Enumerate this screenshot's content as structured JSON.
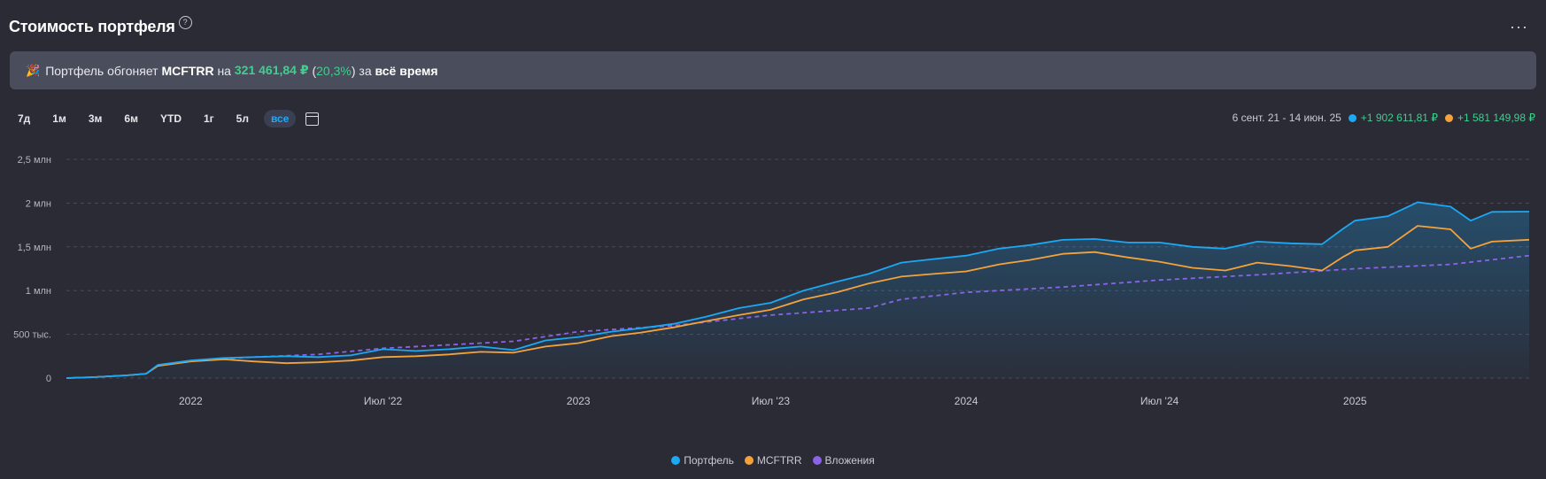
{
  "header": {
    "title": "Стоимость портфеля",
    "help_icon": "?",
    "more_icon": "···"
  },
  "banner": {
    "party_icon": "🎉",
    "text_prefix": "Портфель обгоняет",
    "benchmark": "MCFTRR",
    "text_on": "на",
    "amount": "321 461,84 ₽",
    "paren_open": "(",
    "percent": "20,3%",
    "paren_close": ")",
    "text_for": "за",
    "period": "всё время"
  },
  "ranges": [
    {
      "label": "7д",
      "active": false
    },
    {
      "label": "1м",
      "active": false
    },
    {
      "label": "3м",
      "active": false
    },
    {
      "label": "6м",
      "active": false
    },
    {
      "label": "YTD",
      "active": false
    },
    {
      "label": "1г",
      "active": false
    },
    {
      "label": "5л",
      "active": false
    },
    {
      "label": "все",
      "active": true
    }
  ],
  "summary": {
    "period": "6 сент. 21 - 14 июн. 25",
    "portfolio_gain": "+1 902 611,81 ₽",
    "benchmark_gain": "+1 581 149,98 ₽"
  },
  "colors": {
    "portfolio": "#1ba8f4",
    "benchmark": "#f4a23c",
    "investments": "#8c63e6",
    "grid": "#4a4a58"
  },
  "chart_data": {
    "type": "line",
    "x_range": [
      "2021-09-06",
      "2025-06-14"
    ],
    "ylim": [
      0,
      2500000
    ],
    "y_ticks": [
      {
        "value": 0,
        "label": "0"
      },
      {
        "value": 500000,
        "label": "500 тыс."
      },
      {
        "value": 1000000,
        "label": "1 млн"
      },
      {
        "value": 1500000,
        "label": "1,5 млн"
      },
      {
        "value": 2000000,
        "label": "2 млн"
      },
      {
        "value": 2500000,
        "label": "2,5 млн"
      }
    ],
    "x_ticks": [
      {
        "date": "2022-01-01",
        "label": "2022"
      },
      {
        "date": "2022-07-01",
        "label": "Июл '22"
      },
      {
        "date": "2023-01-01",
        "label": "2023"
      },
      {
        "date": "2023-07-01",
        "label": "Июл '23"
      },
      {
        "date": "2024-01-01",
        "label": "2024"
      },
      {
        "date": "2024-07-01",
        "label": "Июл '24"
      },
      {
        "date": "2025-01-01",
        "label": "2025"
      }
    ],
    "grid": true,
    "legend_position": "bottom",
    "series": [
      {
        "name": "Портфель",
        "key": "portfolio",
        "style": "solid-area",
        "points": [
          [
            "2021-09-06",
            0
          ],
          [
            "2021-10-01",
            10000
          ],
          [
            "2021-11-01",
            30000
          ],
          [
            "2021-11-20",
            50000
          ],
          [
            "2021-12-01",
            150000
          ],
          [
            "2022-01-01",
            200000
          ],
          [
            "2022-02-01",
            230000
          ],
          [
            "2022-03-01",
            240000
          ],
          [
            "2022-04-01",
            250000
          ],
          [
            "2022-05-01",
            240000
          ],
          [
            "2022-06-01",
            260000
          ],
          [
            "2022-07-01",
            330000
          ],
          [
            "2022-08-01",
            310000
          ],
          [
            "2022-09-01",
            330000
          ],
          [
            "2022-10-01",
            360000
          ],
          [
            "2022-11-01",
            320000
          ],
          [
            "2022-12-01",
            430000
          ],
          [
            "2023-01-01",
            470000
          ],
          [
            "2023-02-01",
            530000
          ],
          [
            "2023-03-01",
            570000
          ],
          [
            "2023-04-01",
            620000
          ],
          [
            "2023-05-01",
            700000
          ],
          [
            "2023-06-01",
            800000
          ],
          [
            "2023-07-01",
            860000
          ],
          [
            "2023-08-01",
            1000000
          ],
          [
            "2023-09-01",
            1100000
          ],
          [
            "2023-10-01",
            1190000
          ],
          [
            "2023-11-01",
            1320000
          ],
          [
            "2023-12-01",
            1360000
          ],
          [
            "2024-01-01",
            1400000
          ],
          [
            "2024-02-01",
            1480000
          ],
          [
            "2024-03-01",
            1520000
          ],
          [
            "2024-04-01",
            1580000
          ],
          [
            "2024-05-01",
            1590000
          ],
          [
            "2024-06-01",
            1550000
          ],
          [
            "2024-07-01",
            1550000
          ],
          [
            "2024-08-01",
            1500000
          ],
          [
            "2024-09-01",
            1480000
          ],
          [
            "2024-10-01",
            1560000
          ],
          [
            "2024-11-01",
            1540000
          ],
          [
            "2024-12-01",
            1530000
          ],
          [
            "2024-12-20",
            1700000
          ],
          [
            "2025-01-01",
            1800000
          ],
          [
            "2025-02-01",
            1850000
          ],
          [
            "2025-03-01",
            2010000
          ],
          [
            "2025-04-01",
            1960000
          ],
          [
            "2025-04-20",
            1800000
          ],
          [
            "2025-05-10",
            1900000
          ],
          [
            "2025-06-14",
            1902612
          ]
        ]
      },
      {
        "name": "MCFTRR",
        "key": "benchmark",
        "style": "solid",
        "points": [
          [
            "2021-09-06",
            0
          ],
          [
            "2021-10-01",
            10000
          ],
          [
            "2021-11-01",
            30000
          ],
          [
            "2021-11-20",
            50000
          ],
          [
            "2021-12-01",
            140000
          ],
          [
            "2022-01-01",
            190000
          ],
          [
            "2022-02-01",
            215000
          ],
          [
            "2022-03-01",
            190000
          ],
          [
            "2022-04-01",
            170000
          ],
          [
            "2022-05-01",
            180000
          ],
          [
            "2022-06-01",
            200000
          ],
          [
            "2022-07-01",
            240000
          ],
          [
            "2022-08-01",
            250000
          ],
          [
            "2022-09-01",
            270000
          ],
          [
            "2022-10-01",
            300000
          ],
          [
            "2022-11-01",
            290000
          ],
          [
            "2022-12-01",
            360000
          ],
          [
            "2023-01-01",
            400000
          ],
          [
            "2023-02-01",
            480000
          ],
          [
            "2023-03-01",
            520000
          ],
          [
            "2023-04-01",
            580000
          ],
          [
            "2023-05-01",
            650000
          ],
          [
            "2023-06-01",
            720000
          ],
          [
            "2023-07-01",
            780000
          ],
          [
            "2023-08-01",
            900000
          ],
          [
            "2023-09-01",
            980000
          ],
          [
            "2023-10-01",
            1080000
          ],
          [
            "2023-11-01",
            1160000
          ],
          [
            "2023-12-01",
            1190000
          ],
          [
            "2024-01-01",
            1220000
          ],
          [
            "2024-02-01",
            1300000
          ],
          [
            "2024-03-01",
            1350000
          ],
          [
            "2024-04-01",
            1420000
          ],
          [
            "2024-05-01",
            1440000
          ],
          [
            "2024-06-01",
            1380000
          ],
          [
            "2024-07-01",
            1330000
          ],
          [
            "2024-08-01",
            1260000
          ],
          [
            "2024-09-01",
            1230000
          ],
          [
            "2024-10-01",
            1320000
          ],
          [
            "2024-11-01",
            1280000
          ],
          [
            "2024-12-01",
            1230000
          ],
          [
            "2024-12-20",
            1380000
          ],
          [
            "2025-01-01",
            1460000
          ],
          [
            "2025-02-01",
            1500000
          ],
          [
            "2025-03-01",
            1740000
          ],
          [
            "2025-04-01",
            1700000
          ],
          [
            "2025-04-20",
            1480000
          ],
          [
            "2025-05-10",
            1560000
          ],
          [
            "2025-06-14",
            1581150
          ]
        ]
      },
      {
        "name": "Вложения",
        "key": "investments",
        "style": "dashed",
        "points": [
          [
            "2021-09-06",
            0
          ],
          [
            "2021-10-01",
            10000
          ],
          [
            "2021-11-01",
            30000
          ],
          [
            "2021-11-20",
            50000
          ],
          [
            "2021-12-01",
            140000
          ],
          [
            "2022-01-01",
            200000
          ],
          [
            "2022-03-01",
            240000
          ],
          [
            "2022-05-01",
            270000
          ],
          [
            "2022-07-01",
            340000
          ],
          [
            "2022-09-01",
            380000
          ],
          [
            "2022-11-01",
            420000
          ],
          [
            "2023-01-01",
            530000
          ],
          [
            "2023-04-01",
            600000
          ],
          [
            "2023-07-01",
            720000
          ],
          [
            "2023-10-01",
            800000
          ],
          [
            "2023-11-01",
            900000
          ],
          [
            "2024-01-01",
            980000
          ],
          [
            "2024-04-01",
            1040000
          ],
          [
            "2024-07-01",
            1120000
          ],
          [
            "2024-10-01",
            1180000
          ],
          [
            "2025-01-01",
            1250000
          ],
          [
            "2025-04-01",
            1300000
          ],
          [
            "2025-06-14",
            1400000
          ]
        ]
      }
    ]
  }
}
